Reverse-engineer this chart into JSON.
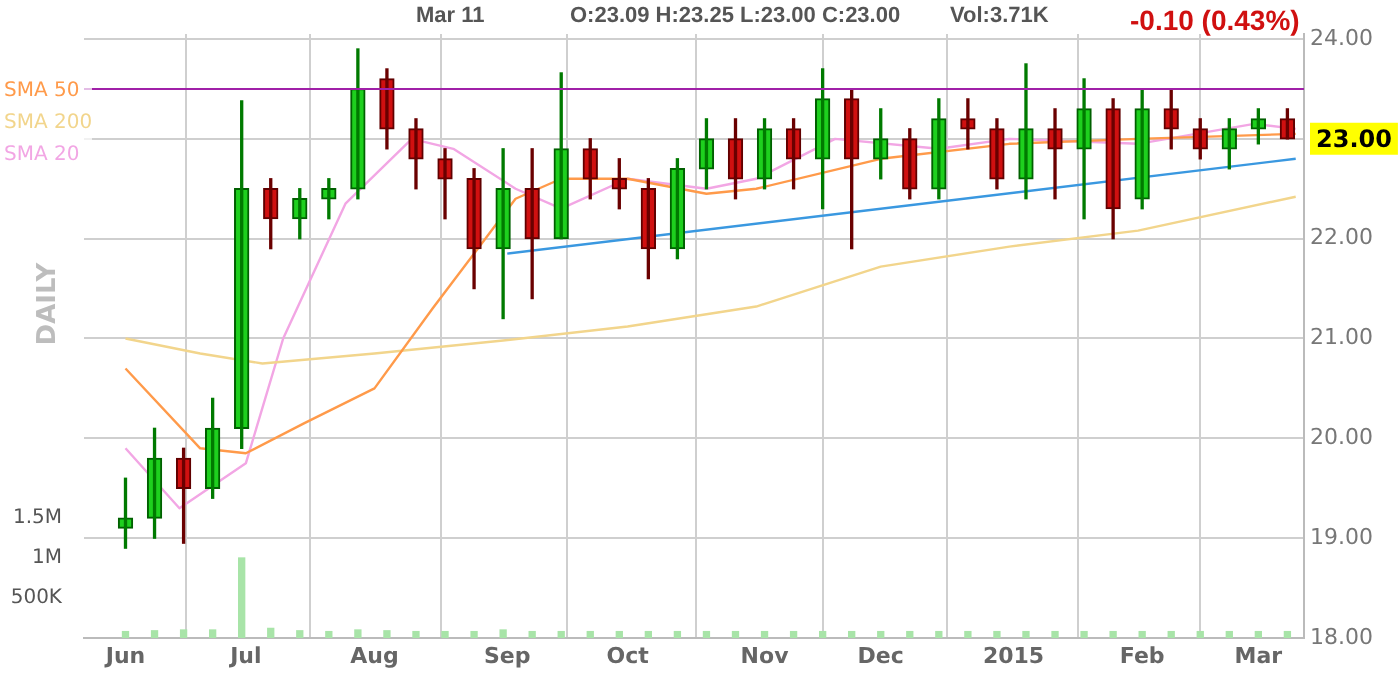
{
  "chart_data": {
    "type": "candlestick",
    "annotations": [
      "Mar 11",
      "O:23.09 H:23.25 L:23.00 C:23.00",
      "Vol:3.71K",
      "-0.10 (0.43%)",
      "23.00",
      "DAILY"
    ],
    "x": [
      "2014-06-02",
      "2014-06-09",
      "2014-06-16",
      "2014-06-23",
      "2014-06-30",
      "2014-07-07",
      "2014-07-14",
      "2014-07-21",
      "2014-07-28",
      "2014-08-04",
      "2014-08-11",
      "2014-08-18",
      "2014-08-25",
      "2014-09-01",
      "2014-09-08",
      "2014-09-15",
      "2014-09-22",
      "2014-09-29",
      "2014-10-06",
      "2014-10-13",
      "2014-10-20",
      "2014-10-27",
      "2014-11-03",
      "2014-11-10",
      "2014-11-17",
      "2014-11-24",
      "2014-12-01",
      "2014-12-08",
      "2014-12-15",
      "2014-12-22",
      "2014-12-29",
      "2015-01-05",
      "2015-01-12",
      "2015-01-19",
      "2015-01-26",
      "2015-02-02",
      "2015-02-09",
      "2015-02-16",
      "2015-02-23",
      "2015-03-02",
      "2015-03-09"
    ],
    "ohlc": [
      [
        19.1,
        19.6,
        18.9,
        19.2
      ],
      [
        19.2,
        20.1,
        19.0,
        19.8
      ],
      [
        19.8,
        19.9,
        18.95,
        19.5
      ],
      [
        19.5,
        20.4,
        19.4,
        20.1
      ],
      [
        20.1,
        23.38,
        19.9,
        22.5
      ],
      [
        22.5,
        22.6,
        21.9,
        22.2
      ],
      [
        22.2,
        22.5,
        22.0,
        22.4
      ],
      [
        22.4,
        22.6,
        22.2,
        22.5
      ],
      [
        22.5,
        23.9,
        22.4,
        23.5
      ],
      [
        23.6,
        23.7,
        22.9,
        23.1
      ],
      [
        23.1,
        23.2,
        22.5,
        22.8
      ],
      [
        22.8,
        22.9,
        22.2,
        22.6
      ],
      [
        22.6,
        22.7,
        21.5,
        21.9
      ],
      [
        21.9,
        22.9,
        21.2,
        22.5
      ],
      [
        22.5,
        22.9,
        21.4,
        22.0
      ],
      [
        22.0,
        23.66,
        22.0,
        22.9
      ],
      [
        22.9,
        23.0,
        22.4,
        22.6
      ],
      [
        22.6,
        22.8,
        22.3,
        22.5
      ],
      [
        22.5,
        22.6,
        21.6,
        21.9
      ],
      [
        21.9,
        22.8,
        21.8,
        22.7
      ],
      [
        22.7,
        23.2,
        22.5,
        23.0
      ],
      [
        23.0,
        23.2,
        22.4,
        22.6
      ],
      [
        22.6,
        23.2,
        22.5,
        23.1
      ],
      [
        23.1,
        23.2,
        22.5,
        22.8
      ],
      [
        22.8,
        23.7,
        22.3,
        23.4
      ],
      [
        23.4,
        23.5,
        21.9,
        22.8
      ],
      [
        22.8,
        23.3,
        22.6,
        23.0
      ],
      [
        23.0,
        23.1,
        22.4,
        22.5
      ],
      [
        22.5,
        23.4,
        22.4,
        23.2
      ],
      [
        23.2,
        23.4,
        22.9,
        23.1
      ],
      [
        23.1,
        23.2,
        22.5,
        22.6
      ],
      [
        22.6,
        23.75,
        22.4,
        23.1
      ],
      [
        23.1,
        23.3,
        22.4,
        22.9
      ],
      [
        22.9,
        23.6,
        22.2,
        23.3
      ],
      [
        23.3,
        23.4,
        22.0,
        22.3
      ],
      [
        22.4,
        23.5,
        22.3,
        23.3
      ],
      [
        23.3,
        23.5,
        22.9,
        23.1
      ],
      [
        23.1,
        23.2,
        22.8,
        22.9
      ],
      [
        22.9,
        23.2,
        22.7,
        23.1
      ],
      [
        23.1,
        23.3,
        22.95,
        23.2
      ],
      [
        23.2,
        23.3,
        23.0,
        23.0
      ]
    ],
    "series": [
      {
        "name": "SMA 50",
        "type": "line",
        "color": "#ff9a4a",
        "x": [
          "2014-06-02",
          "2014-06-20",
          "2014-07-01",
          "2014-07-15",
          "2014-08-01",
          "2014-08-15",
          "2014-09-04",
          "2014-09-15",
          "2014-10-01",
          "2014-10-20",
          "2014-11-01",
          "2014-12-01",
          "2015-01-01",
          "2015-02-01",
          "2015-03-11"
        ],
        "values": [
          20.7,
          19.9,
          19.85,
          20.15,
          20.5,
          21.3,
          22.4,
          22.6,
          22.6,
          22.45,
          22.5,
          22.8,
          22.95,
          23.0,
          23.05
        ]
      },
      {
        "name": "SMA 200",
        "type": "line",
        "color": "#f2d58c",
        "x": [
          "2014-06-02",
          "2014-06-20",
          "2014-07-05",
          "2014-08-01",
          "2014-09-01",
          "2014-10-01",
          "2014-11-01",
          "2014-12-01",
          "2015-01-01",
          "2015-02-01",
          "2015-03-11"
        ],
        "values": [
          21.0,
          20.85,
          20.75,
          20.85,
          20.98,
          21.12,
          21.32,
          21.72,
          21.92,
          22.08,
          22.42
        ]
      },
      {
        "name": "SMA 20",
        "type": "line",
        "color": "#f2a6e4",
        "x": [
          "2014-06-02",
          "2014-06-15",
          "2014-07-01",
          "2014-07-10",
          "2014-07-25",
          "2014-08-10",
          "2014-08-20",
          "2014-09-04",
          "2014-09-15",
          "2014-10-01",
          "2014-10-20",
          "2014-11-01",
          "2014-11-20",
          "2014-12-15",
          "2015-01-01",
          "2015-02-01",
          "2015-03-01",
          "2015-03-11"
        ],
        "values": [
          19.9,
          19.3,
          19.75,
          21.0,
          22.35,
          23.0,
          22.9,
          22.5,
          22.3,
          22.6,
          22.5,
          22.6,
          23.0,
          22.9,
          23.0,
          22.95,
          23.15,
          23.1
        ]
      },
      {
        "type": "line",
        "color": "#3a98e0",
        "x": [
          "2014-09-02",
          "2015-03-11"
        ],
        "values": [
          21.85,
          22.8
        ]
      },
      {
        "type": "bar",
        "axis": "y2",
        "color": "#a8e4a8",
        "x": [
          "2014-06-02",
          "2014-06-09",
          "2014-06-16",
          "2014-06-23",
          "2014-06-30",
          "2014-07-07",
          "2014-07-14",
          "2014-07-21",
          "2014-07-28",
          "2014-08-04",
          "2014-08-11",
          "2014-08-18",
          "2014-08-25",
          "2014-09-01",
          "2014-09-08",
          "2014-09-15",
          "2014-09-22",
          "2014-09-29",
          "2014-10-06",
          "2014-10-13",
          "2014-10-20",
          "2014-10-27",
          "2014-11-03",
          "2014-11-10",
          "2014-11-17",
          "2014-11-24",
          "2014-12-01",
          "2014-12-08",
          "2014-12-15",
          "2014-12-22",
          "2014-12-29",
          "2015-01-05",
          "2015-01-12",
          "2015-01-19",
          "2015-01-26",
          "2015-02-02",
          "2015-02-09",
          "2015-02-16",
          "2015-02-23",
          "2015-03-02",
          "2015-03-09"
        ],
        "values": [
          80000,
          90000,
          100000,
          100000,
          1000000,
          120000,
          90000,
          80000,
          100000,
          90000,
          80000,
          80000,
          80000,
          100000,
          80000,
          80000,
          80000,
          80000,
          80000,
          80000,
          80000,
          80000,
          80000,
          80000,
          80000,
          80000,
          80000,
          80000,
          80000,
          80000,
          80000,
          80000,
          80000,
          80000,
          80000,
          80000,
          80000,
          80000,
          80000,
          80000,
          80000
        ]
      }
    ],
    "xlim": [
      "2014-05-23",
      "2015-03-13"
    ],
    "xticks": [
      {
        "value": "2014-06-02",
        "label": "Jun"
      },
      {
        "value": "2014-07-01",
        "label": "Jul"
      },
      {
        "value": "2014-08-01",
        "label": "Aug"
      },
      {
        "value": "2014-09-02",
        "label": "Sep"
      },
      {
        "value": "2014-10-01",
        "label": "Oct"
      },
      {
        "value": "2014-11-03",
        "label": "Nov"
      },
      {
        "value": "2014-12-01",
        "label": "Dec"
      },
      {
        "value": "2015-01-02",
        "label": "2015"
      },
      {
        "value": "2015-02-02",
        "label": "Feb"
      },
      {
        "value": "2015-03-02",
        "label": "Mar"
      }
    ],
    "ylim": [
      18,
      24.05
    ],
    "yticks": [
      {
        "value": 18,
        "label": "18.00"
      },
      {
        "value": 19,
        "label": "19.00"
      },
      {
        "value": 20,
        "label": "20.00"
      },
      {
        "value": 21,
        "label": "21.00"
      },
      {
        "value": 22,
        "label": "22.00"
      },
      {
        "value": 23,
        "label": null
      },
      {
        "value": 24,
        "label": "24.00"
      }
    ],
    "y2lim": [
      0,
      7550000
    ],
    "y2ticks": [
      {
        "value": 500000,
        "label": "500K"
      },
      {
        "value": 1000000,
        "label": "1M"
      },
      {
        "value": 1500000,
        "label": "1.5M"
      }
    ],
    "ref_lines": [
      {
        "axis": "y",
        "value": 23.5,
        "color": "#a020a8"
      }
    ],
    "grid": true,
    "legend": "top left"
  }
}
